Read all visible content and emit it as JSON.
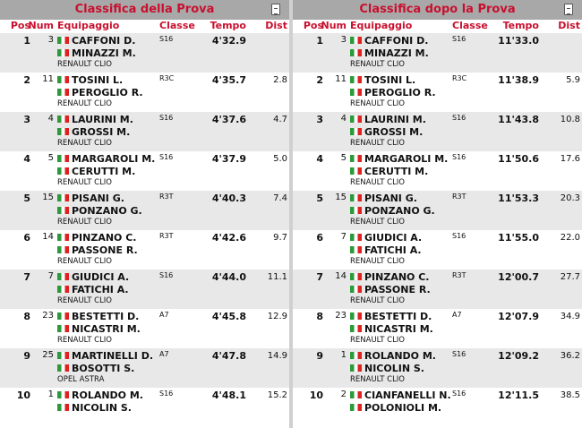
{
  "icons": {
    "report": "document-icon",
    "flag": "italy-flag-icon"
  },
  "colors": {
    "accent": "#c8102e",
    "title_bar": "#a8a8a8",
    "row_alt": "#e8e8e8"
  },
  "headers": {
    "pos": "Pos",
    "num": "Num",
    "eq": "Equipaggio",
    "cl": "Classe",
    "t": "Tempo",
    "d": "Dist"
  },
  "panels": [
    {
      "title": "Classifica della Prova",
      "rows": [
        {
          "pos": "1",
          "num": "3",
          "d1": "CAFFONI D.",
          "d2": "MINAZZI M.",
          "car": "RENAULT CLIO",
          "cl": "S16",
          "t": "4'32.9",
          "d": ""
        },
        {
          "pos": "2",
          "num": "11",
          "d1": "TOSINI L.",
          "d2": "PEROGLIO R.",
          "car": "RENAULT CLIO",
          "cl": "R3C",
          "t": "4'35.7",
          "d": "2.8"
        },
        {
          "pos": "3",
          "num": "4",
          "d1": "LAURINI M.",
          "d2": "GROSSI M.",
          "car": "RENAULT CLIO",
          "cl": "S16",
          "t": "4'37.6",
          "d": "4.7"
        },
        {
          "pos": "4",
          "num": "5",
          "d1": "MARGAROLI M.",
          "d2": "CERUTTI M.",
          "car": "RENAULT CLIO",
          "cl": "S16",
          "t": "4'37.9",
          "d": "5.0"
        },
        {
          "pos": "5",
          "num": "15",
          "d1": "PISANI G.",
          "d2": "PONZANO G.",
          "car": "RENAULT CLIO",
          "cl": "R3T",
          "t": "4'40.3",
          "d": "7.4"
        },
        {
          "pos": "6",
          "num": "14",
          "d1": "PINZANO C.",
          "d2": "PASSONE R.",
          "car": "RENAULT CLIO",
          "cl": "R3T",
          "t": "4'42.6",
          "d": "9.7"
        },
        {
          "pos": "7",
          "num": "7",
          "d1": "GIUDICI A.",
          "d2": "FATICHI A.",
          "car": "RENAULT CLIO",
          "cl": "S16",
          "t": "4'44.0",
          "d": "11.1"
        },
        {
          "pos": "8",
          "num": "23",
          "d1": "BESTETTI D.",
          "d2": "NICASTRI M.",
          "car": "RENAULT CLIO",
          "cl": "A7",
          "t": "4'45.8",
          "d": "12.9"
        },
        {
          "pos": "9",
          "num": "25",
          "d1": "MARTINELLI D.",
          "d2": "BOSOTTI S.",
          "car": "OPEL ASTRA",
          "cl": "A7",
          "t": "4'47.8",
          "d": "14.9"
        },
        {
          "pos": "10",
          "num": "1",
          "d1": "ROLANDO M.",
          "d2": "NICOLIN S.",
          "car": "",
          "cl": "S16",
          "t": "4'48.1",
          "d": "15.2"
        }
      ]
    },
    {
      "title": "Classifica dopo la Prova",
      "rows": [
        {
          "pos": "1",
          "num": "3",
          "d1": "CAFFONI D.",
          "d2": "MINAZZI M.",
          "car": "RENAULT CLIO",
          "cl": "S16",
          "t": "11'33.0",
          "d": ""
        },
        {
          "pos": "2",
          "num": "11",
          "d1": "TOSINI L.",
          "d2": "PEROGLIO R.",
          "car": "RENAULT CLIO",
          "cl": "R3C",
          "t": "11'38.9",
          "d": "5.9"
        },
        {
          "pos": "3",
          "num": "4",
          "d1": "LAURINI M.",
          "d2": "GROSSI M.",
          "car": "RENAULT CLIO",
          "cl": "S16",
          "t": "11'43.8",
          "d": "10.8"
        },
        {
          "pos": "4",
          "num": "5",
          "d1": "MARGAROLI M.",
          "d2": "CERUTTI M.",
          "car": "RENAULT CLIO",
          "cl": "S16",
          "t": "11'50.6",
          "d": "17.6"
        },
        {
          "pos": "5",
          "num": "15",
          "d1": "PISANI G.",
          "d2": "PONZANO G.",
          "car": "RENAULT CLIO",
          "cl": "R3T",
          "t": "11'53.3",
          "d": "20.3"
        },
        {
          "pos": "6",
          "num": "7",
          "d1": "GIUDICI A.",
          "d2": "FATICHI A.",
          "car": "RENAULT CLIO",
          "cl": "S16",
          "t": "11'55.0",
          "d": "22.0"
        },
        {
          "pos": "7",
          "num": "14",
          "d1": "PINZANO C.",
          "d2": "PASSONE R.",
          "car": "RENAULT CLIO",
          "cl": "R3T",
          "t": "12'00.7",
          "d": "27.7"
        },
        {
          "pos": "8",
          "num": "23",
          "d1": "BESTETTI D.",
          "d2": "NICASTRI M.",
          "car": "RENAULT CLIO",
          "cl": "A7",
          "t": "12'07.9",
          "d": "34.9"
        },
        {
          "pos": "9",
          "num": "1",
          "d1": "ROLANDO M.",
          "d2": "NICOLIN S.",
          "car": "RENAULT CLIO",
          "cl": "S16",
          "t": "12'09.2",
          "d": "36.2"
        },
        {
          "pos": "10",
          "num": "2",
          "d1": "CIANFANELLI N.",
          "d2": "POLONIOLI M.",
          "car": "",
          "cl": "S16",
          "t": "12'11.5",
          "d": "38.5"
        }
      ]
    }
  ]
}
